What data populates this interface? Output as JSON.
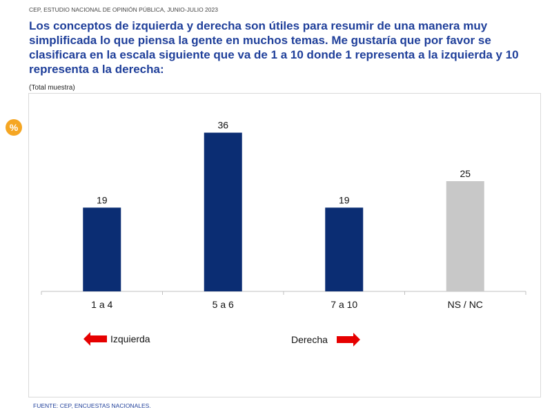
{
  "header": {
    "source_line": "CEP, ESTUDIO NACIONAL DE OPINIÓN PÚBLICA, JUNIO-JULIO 2023"
  },
  "question": "Los conceptos de izquierda y derecha son útiles para resumir de una manera muy simplificada lo que piensa la gente en muchos temas. Me gustaría que por favor se clasificara en la escala siguiente que va de 1 a 10 donde 1 representa a la izquierda y 10 representa a la derecha:",
  "subtitle": "(Total muestra)",
  "badge": {
    "text": "%",
    "icon": "percent-badge-icon",
    "color": "#f5a623"
  },
  "arrows": {
    "left_label": "Izquierda",
    "right_label": "Derecha",
    "color": "#e60000"
  },
  "footer": "FUENTE: CEP, ENCUESTAS NACIONALES.",
  "chart_data": {
    "type": "bar",
    "categories": [
      "1 a 4",
      "5 a 6",
      "7 a 10",
      "NS / NC"
    ],
    "values": [
      19,
      36,
      19,
      25
    ],
    "colors": [
      "#0b2d73",
      "#0b2d73",
      "#0b2d73",
      "#c8c8c8"
    ],
    "title": "",
    "xlabel": "",
    "ylabel": "",
    "ylim": [
      0,
      40
    ],
    "grid": false,
    "legend": "none"
  }
}
